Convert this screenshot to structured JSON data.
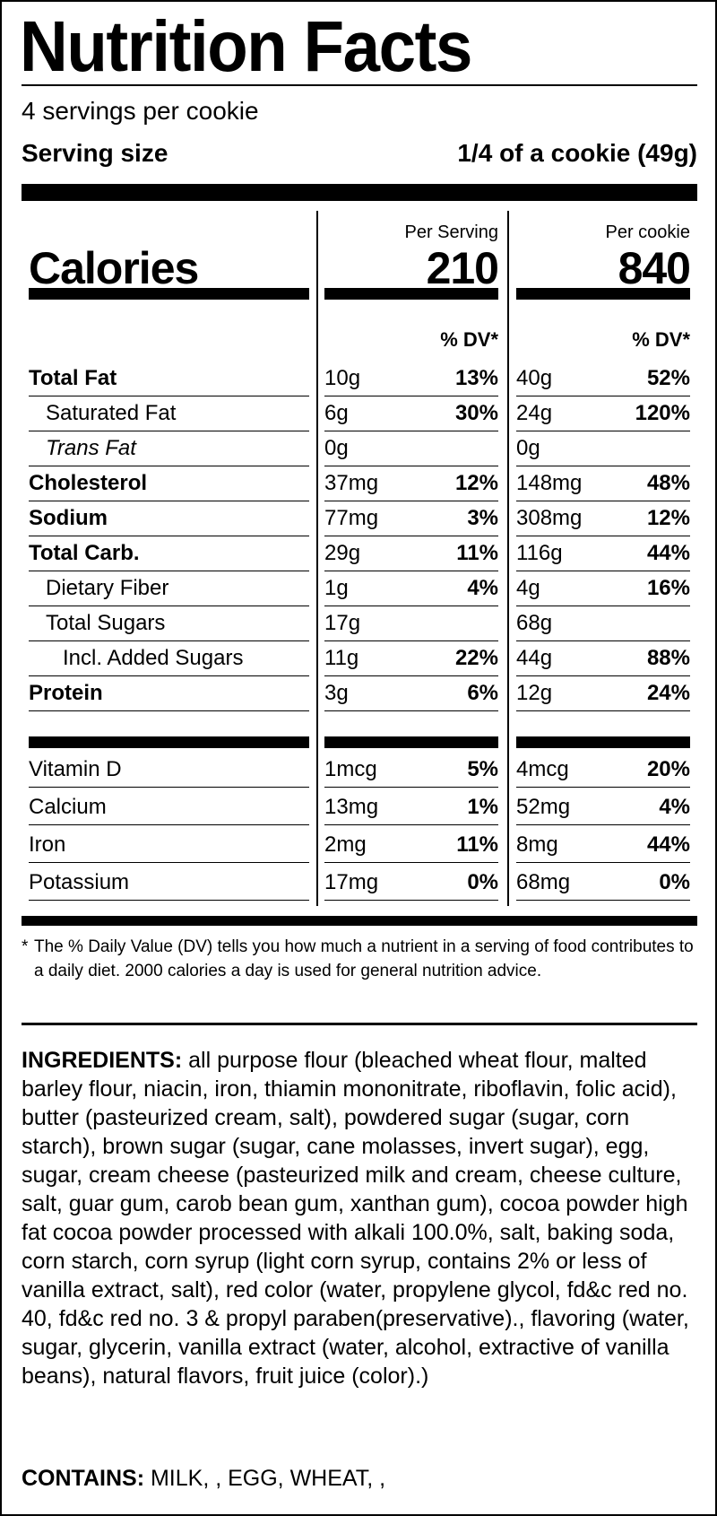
{
  "title": "Nutrition Facts",
  "servings_per": "4 servings per cookie",
  "serving_size_label": "Serving size",
  "serving_size_value": "1/4 of a cookie (49g)",
  "columns": {
    "per_serving": "Per Serving",
    "per_cookie": "Per cookie",
    "dv": "% DV*"
  },
  "calories": {
    "label": "Calories",
    "per_serving": "210",
    "per_cookie": "840"
  },
  "nutrients": [
    {
      "name": "Total Fat",
      "style": "b",
      "s_amt": "10g",
      "s_dv": "13%",
      "c_amt": "40g",
      "c_dv": "52%"
    },
    {
      "name": "Saturated Fat",
      "style": "ind1",
      "s_amt": "6g",
      "s_dv": "30%",
      "c_amt": "24g",
      "c_dv": "120%"
    },
    {
      "name": "Trans Fat",
      "style": "ind1 i",
      "s_amt": "0g",
      "s_dv": "",
      "c_amt": "0g",
      "c_dv": ""
    },
    {
      "name": "Cholesterol",
      "style": "b",
      "s_amt": "37mg",
      "s_dv": "12%",
      "c_amt": "148mg",
      "c_dv": "48%"
    },
    {
      "name": "Sodium",
      "style": "b",
      "s_amt": "77mg",
      "s_dv": "3%",
      "c_amt": "308mg",
      "c_dv": "12%"
    },
    {
      "name": "Total Carb.",
      "style": "b",
      "s_amt": "29g",
      "s_dv": "11%",
      "c_amt": "116g",
      "c_dv": "44%"
    },
    {
      "name": "Dietary Fiber",
      "style": "ind1",
      "s_amt": "1g",
      "s_dv": "4%",
      "c_amt": "4g",
      "c_dv": "16%"
    },
    {
      "name": "Total Sugars",
      "style": "ind1",
      "s_amt": "17g",
      "s_dv": "",
      "c_amt": "68g",
      "c_dv": ""
    },
    {
      "name": "Incl. Added Sugars",
      "style": "ind2",
      "s_amt": "11g",
      "s_dv": "22%",
      "c_amt": "44g",
      "c_dv": "88%"
    },
    {
      "name": "Protein",
      "style": "b",
      "s_amt": "3g",
      "s_dv": "6%",
      "c_amt": "12g",
      "c_dv": "24%"
    }
  ],
  "vitamins": [
    {
      "name": "Vitamin D",
      "s_amt": "1mcg",
      "s_dv": "5%",
      "c_amt": "4mcg",
      "c_dv": "20%"
    },
    {
      "name": "Calcium",
      "s_amt": "13mg",
      "s_dv": "1%",
      "c_amt": "52mg",
      "c_dv": "4%"
    },
    {
      "name": "Iron",
      "s_amt": "2mg",
      "s_dv": "11%",
      "c_amt": "8mg",
      "c_dv": "44%"
    },
    {
      "name": "Potassium",
      "s_amt": "17mg",
      "s_dv": "0%",
      "c_amt": "68mg",
      "c_dv": "0%"
    }
  ],
  "footnote": {
    "star": "*",
    "text": "The % Daily Value (DV) tells you how much a nutrient in a serving of food contributes to a daily diet. 2000 calories a day is used for general nutrition advice."
  },
  "ingredients": {
    "label": "INGREDIENTS:",
    "text": "all purpose flour (bleached wheat flour, malted barley flour, niacin, iron, thiamin mononitrate, riboflavin, folic acid), butter (pasteurized cream, salt), powdered sugar (sugar, corn starch), brown sugar (sugar, cane molasses, invert sugar), egg, sugar, cream cheese (pasteurized milk and cream, cheese culture, salt, guar gum, carob bean gum, xanthan gum), cocoa powder high fat cocoa powder processed with alkali 100.0%, salt, baking soda, corn starch, corn syrup (light corn syrup, contains 2% or less of vanilla extract, salt), red color (water, propylene glycol, fd&c red no. 40, fd&c red no. 3 & propyl paraben(preservative)., flavoring (water, sugar, glycerin, vanilla extract (water, alcohol, extractive of vanilla beans), natural flavors, fruit juice (color).)"
  },
  "contains": {
    "label": "CONTAINS:",
    "text": "MILK, , EGG, WHEAT, ,"
  }
}
